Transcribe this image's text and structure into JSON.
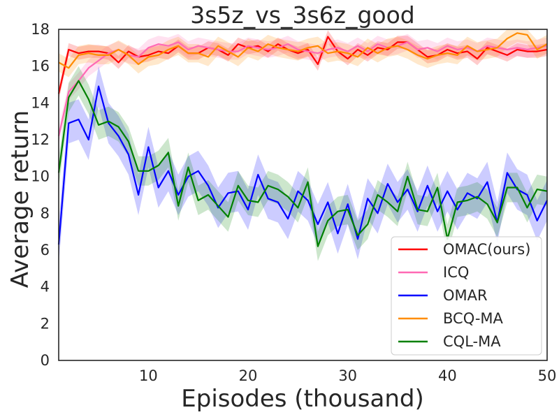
{
  "chart_data": {
    "type": "line",
    "title": "3s5z_vs_3s6z_good",
    "xlabel": "Episodes (thousand)",
    "ylabel": "Average return",
    "xlim": [
      1,
      50
    ],
    "ylim": [
      0,
      18
    ],
    "xticks": [
      10,
      20,
      30,
      40,
      50
    ],
    "yticks": [
      0,
      2,
      4,
      6,
      8,
      10,
      12,
      14,
      16,
      18
    ],
    "grid": false,
    "legend_position": "bottom-right",
    "x": [
      1,
      2,
      3,
      4,
      5,
      6,
      7,
      8,
      9,
      10,
      11,
      12,
      13,
      14,
      15,
      16,
      17,
      18,
      19,
      20,
      21,
      22,
      23,
      24,
      25,
      26,
      27,
      28,
      29,
      30,
      31,
      32,
      33,
      34,
      35,
      36,
      37,
      38,
      39,
      40,
      41,
      42,
      43,
      44,
      45,
      46,
      47,
      48,
      49,
      50
    ],
    "series": [
      {
        "name": "OMAC(ours)",
        "color": "#ff0000",
        "values": [
          14.5,
          16.9,
          16.7,
          16.8,
          16.8,
          16.7,
          16.2,
          16.8,
          16.5,
          16.6,
          16.8,
          16.7,
          17.1,
          16.7,
          16.7,
          17.0,
          16.9,
          16.6,
          17.2,
          17.0,
          17.1,
          16.8,
          17.2,
          16.9,
          16.7,
          16.9,
          16.1,
          17.6,
          16.8,
          16.4,
          16.9,
          16.6,
          17.0,
          16.9,
          17.3,
          17.3,
          16.9,
          16.5,
          16.6,
          16.9,
          16.7,
          16.8,
          16.4,
          17.0,
          16.8,
          16.6,
          16.9,
          16.8,
          16.8,
          16.9
        ],
        "band": 0.35
      },
      {
        "name": "ICQ",
        "color": "#ff69b4",
        "values": [
          12.2,
          14.6,
          15.2,
          15.9,
          16.3,
          16.7,
          16.9,
          16.6,
          16.5,
          17.0,
          17.2,
          17.1,
          17.3,
          16.9,
          17.1,
          17.0,
          16.9,
          16.8,
          16.8,
          17.1,
          17.0,
          16.9,
          17.0,
          17.2,
          16.9,
          16.8,
          16.7,
          16.9,
          17.0,
          16.8,
          17.1,
          16.8,
          17.2,
          17.0,
          17.1,
          17.3,
          16.9,
          17.0,
          16.8,
          17.1,
          16.9,
          17.0,
          16.8,
          17.1,
          17.0,
          16.9,
          17.0,
          16.9,
          17.0,
          17.1
        ],
        "band": 0.45
      },
      {
        "name": "OMAR",
        "color": "#0000ff",
        "values": [
          6.3,
          12.9,
          13.1,
          12.0,
          14.9,
          12.9,
          12.2,
          11.2,
          9.0,
          11.6,
          9.4,
          10.3,
          9.0,
          10.0,
          10.3,
          9.5,
          8.3,
          9.1,
          9.2,
          8.2,
          10.1,
          8.8,
          8.6,
          7.7,
          9.2,
          8.7,
          7.4,
          8.6,
          6.9,
          8.5,
          6.6,
          8.8,
          8.0,
          9.6,
          8.6,
          9.3,
          8.1,
          9.5,
          8.1,
          9.2,
          8.2,
          9.1,
          8.8,
          9.7,
          7.5,
          10.2,
          9.3,
          9.0,
          7.6,
          8.7
        ],
        "band": 1.1
      },
      {
        "name": "BCQ-MA",
        "color": "#ff8c00",
        "values": [
          16.2,
          15.9,
          16.6,
          16.7,
          16.6,
          16.6,
          16.9,
          16.6,
          16.1,
          16.5,
          16.6,
          16.9,
          17.1,
          16.7,
          16.7,
          16.5,
          17.1,
          16.8,
          16.5,
          17.0,
          16.8,
          17.2,
          17.0,
          16.9,
          16.8,
          17.0,
          17.1,
          16.7,
          16.8,
          16.7,
          16.5,
          17.0,
          16.7,
          17.0,
          17.1,
          16.9,
          16.6,
          16.4,
          16.6,
          16.7,
          16.6,
          17.1,
          16.8,
          16.9,
          17.0,
          17.5,
          17.8,
          17.7,
          16.9,
          17.2
        ],
        "band": 0.5
      },
      {
        "name": "CQL-MA",
        "color": "#008000",
        "values": [
          10.2,
          14.3,
          15.2,
          14.2,
          12.8,
          13.0,
          12.7,
          11.9,
          10.3,
          10.3,
          10.6,
          11.3,
          8.4,
          10.5,
          8.7,
          9.0,
          8.4,
          7.8,
          9.5,
          8.7,
          8.6,
          9.5,
          9.3,
          8.9,
          8.3,
          9.7,
          6.2,
          7.6,
          8.1,
          8.2,
          6.8,
          7.4,
          9.0,
          8.6,
          8.1,
          10.0,
          8.2,
          8.1,
          9.4,
          6.6,
          8.6,
          8.7,
          8.9,
          8.5,
          7.5,
          9.4,
          9.4,
          8.3,
          9.3,
          9.2
        ],
        "band": 0.8
      }
    ]
  }
}
